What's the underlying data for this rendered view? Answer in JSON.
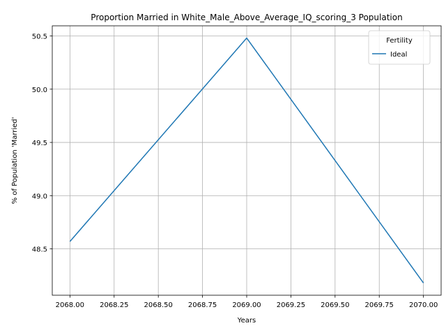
{
  "chart_data": {
    "type": "line",
    "title": "Proportion Married in White_Male_Above_Average_IQ_scoring_3 Population",
    "xlabel": "Years",
    "ylabel": "% of Population 'Married'",
    "x": [
      2068,
      2069,
      2070
    ],
    "series": [
      {
        "name": "Ideal",
        "values": [
          48.57,
          50.48,
          48.18
        ],
        "color": "#1f77b4"
      }
    ],
    "xlim": [
      2067.9,
      2070.1
    ],
    "ylim": [
      48.065,
      50.595
    ],
    "xticks": [
      2068.0,
      2068.25,
      2068.5,
      2068.75,
      2069.0,
      2069.25,
      2069.5,
      2069.75,
      2070.0
    ],
    "xtick_labels": [
      "2068.00",
      "2068.25",
      "2068.50",
      "2068.75",
      "2069.00",
      "2069.25",
      "2069.50",
      "2069.75",
      "2070.00"
    ],
    "yticks": [
      48.5,
      49.0,
      49.5,
      50.0,
      50.5
    ],
    "ytick_labels": [
      "48.5",
      "49.0",
      "49.5",
      "50.0",
      "50.5"
    ],
    "grid": true,
    "legend": {
      "title": "Fertility",
      "placement": "top-right"
    }
  }
}
